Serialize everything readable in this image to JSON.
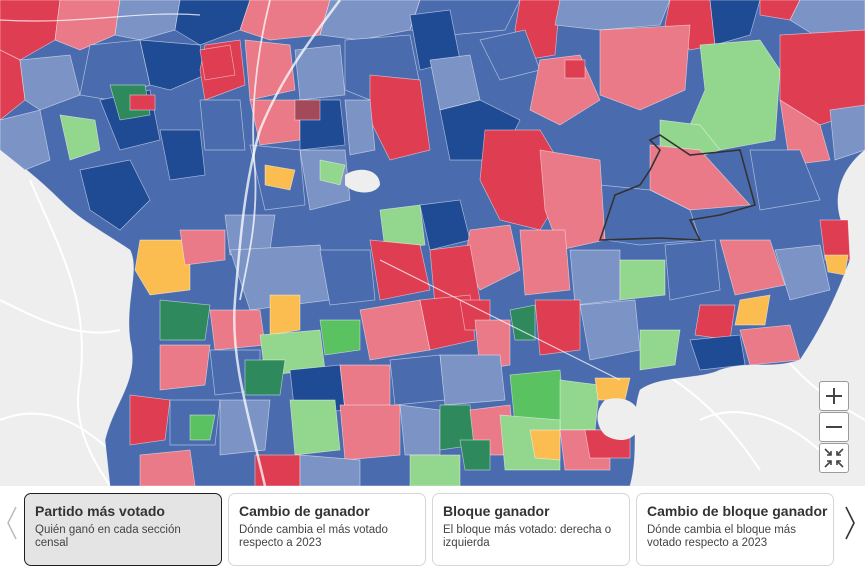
{
  "map": {
    "colors": {
      "dark_blue": "#1f4a94",
      "mid_blue": "#4a6cae",
      "light_blue": "#7c93c6",
      "red": "#de3d52",
      "light_red": "#ea7a87",
      "light_green": "#93d68e",
      "green": "#5ac261",
      "dark_green": "#2e8a5c",
      "yellow": "#fbbd4f",
      "base": "#eeeeee"
    },
    "controls": {
      "zoom_in_icon": "plus-icon",
      "zoom_out_icon": "minus-icon",
      "fit_icon": "collapse-icon"
    }
  },
  "tabs": [
    {
      "title": "Partido más votado",
      "description": "Quién ganó en cada sección censal",
      "active": true
    },
    {
      "title": "Cambio de ganador",
      "description": "Dónde cambia el más votado respecto a 2023",
      "active": false
    },
    {
      "title": "Bloque ganador",
      "description": "El bloque más votado: derecha o izquierda",
      "active": false
    },
    {
      "title": "Cambio de bloque ganador",
      "description": "Dónde cambia el bloque más votado respecto a 2023",
      "active": false
    }
  ],
  "nav": {
    "prev_icon": "chevron-left-icon",
    "next_icon": "chevron-right-icon"
  }
}
